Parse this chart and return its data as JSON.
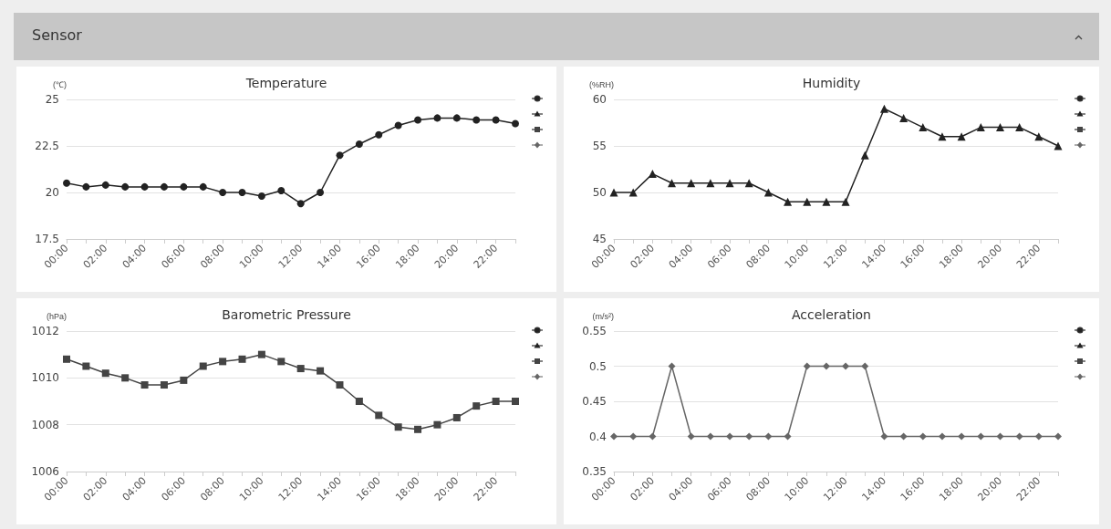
{
  "chart_data": [
    {
      "type": "line",
      "title": "Temperature",
      "ylabel": "(℃)",
      "annotations": [
        "Sensor"
      ],
      "categories": [
        "00:00",
        null,
        "02:00",
        null,
        "04:00",
        null,
        "06:00",
        null,
        "08:00",
        null,
        "10:00",
        null,
        "12:00",
        null,
        "14:00",
        null,
        "16:00",
        null,
        "18:00",
        null,
        "20:00",
        null,
        "22:00",
        null
      ],
      "series": [
        {
          "color": "#222222",
          "values": [
            20.5,
            20.3,
            20.4,
            20.3,
            20.3,
            20.3,
            20.3,
            20.3,
            20.0,
            20.0,
            19.8,
            20.1,
            19.4,
            20.0,
            22.0,
            22.6,
            23.1,
            23.6,
            23.9,
            24.0,
            24.0,
            23.9,
            23.9,
            23.7
          ]
        }
      ],
      "ylim": [
        17.5,
        25
      ],
      "yticks": [
        17.5,
        20,
        22.5,
        25
      ],
      "grid": "y",
      "marker": "circle",
      "line_style": "solid"
    },
    {
      "type": "line",
      "title": "Humidity",
      "ylabel": "(%RH)",
      "categories": [
        "00:00",
        null,
        "02:00",
        null,
        "04:00",
        null,
        "06:00",
        null,
        "08:00",
        null,
        "10:00",
        null,
        "12:00",
        null,
        "14:00",
        null,
        "16:00",
        null,
        "18:00",
        null,
        "20:00",
        null,
        "22:00",
        null
      ],
      "series": [
        {
          "color": "#222222",
          "values": [
            50,
            50,
            52,
            51,
            51,
            51,
            51,
            51,
            50,
            49,
            49,
            49,
            49,
            54,
            59,
            58,
            57,
            56,
            56,
            57,
            57,
            57,
            56,
            55
          ]
        }
      ],
      "ylim": [
        45,
        60
      ],
      "yticks": [
        45,
        50,
        55,
        60
      ],
      "grid": "y",
      "marker": "triangle",
      "line_style": "solid"
    },
    {
      "type": "line",
      "title": "Barometric Pressure",
      "ylabel": "(hPa)",
      "categories": [
        "00:00",
        null,
        "02:00",
        null,
        "04:00",
        null,
        "06:00",
        null,
        "08:00",
        null,
        "10:00",
        null,
        "12:00",
        null,
        "14:00",
        null,
        "16:00",
        null,
        "18:00",
        null,
        "20:00",
        null,
        "22:00",
        null
      ],
      "series": [
        {
          "color": "#444444",
          "values": [
            1010.8,
            1010.5,
            1010.2,
            1010.0,
            1009.7,
            1009.7,
            1009.9,
            1010.5,
            1010.7,
            1010.8,
            1011.0,
            1010.7,
            1010.4,
            1010.3,
            1009.7,
            1009.0,
            1008.4,
            1007.9,
            1007.8,
            1008.0,
            1008.3,
            1008.8,
            1009.0,
            1009.0
          ]
        }
      ],
      "ylim": [
        1006,
        1012
      ],
      "yticks": [
        1006,
        1008,
        1010,
        1012
      ],
      "grid": "y",
      "marker": "square",
      "line_style": "solid"
    },
    {
      "type": "line",
      "title": "Acceleration",
      "ylabel": "(m/s²)",
      "categories": [
        "00:00",
        null,
        "02:00",
        null,
        "04:00",
        null,
        "06:00",
        null,
        "08:00",
        null,
        "10:00",
        null,
        "12:00",
        null,
        "14:00",
        null,
        "16:00",
        null,
        "18:00",
        null,
        "20:00",
        null,
        "22:00",
        null
      ],
      "series": [
        {
          "color": "#666666",
          "values": [
            0.4,
            0.4,
            0.4,
            0.5,
            0.4,
            0.4,
            0.4,
            0.4,
            0.4,
            0.4,
            0.5,
            0.5,
            0.5,
            0.5,
            0.4,
            0.4,
            0.4,
            0.4,
            0.4,
            0.4,
            0.4,
            0.4,
            0.4,
            0.4
          ]
        }
      ],
      "ylim": [
        0.35,
        0.55
      ],
      "yticks": [
        0.35,
        0.4,
        0.45,
        0.5,
        0.55
      ],
      "grid": "y",
      "marker": "diamond",
      "line_style": "solid"
    }
  ]
}
